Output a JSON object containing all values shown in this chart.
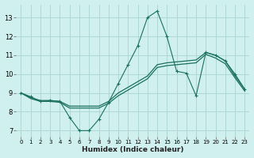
{
  "xlabel": "Humidex (Indice chaleur)",
  "ylabel": "",
  "bg_color": "#cff0ee",
  "grid_color": "#afd8d4",
  "line_color": "#1a7060",
  "xlim": [
    -0.5,
    23.5
  ],
  "ylim": [
    6.7,
    13.7
  ],
  "yticks": [
    7,
    8,
    9,
    10,
    11,
    12,
    13
  ],
  "xticks": [
    0,
    1,
    2,
    3,
    4,
    5,
    6,
    7,
    8,
    9,
    10,
    11,
    12,
    13,
    14,
    15,
    16,
    17,
    18,
    19,
    20,
    21,
    22,
    23
  ],
  "line1_x": [
    0,
    1,
    2,
    3,
    4,
    5,
    6,
    7,
    8,
    9,
    10,
    11,
    12,
    13,
    14,
    15,
    16,
    17,
    18,
    19,
    20,
    21,
    22,
    23
  ],
  "line1_y": [
    9.0,
    8.8,
    8.55,
    8.6,
    8.55,
    7.7,
    7.0,
    7.0,
    7.6,
    8.5,
    9.5,
    10.5,
    11.5,
    13.0,
    13.35,
    12.0,
    10.15,
    10.05,
    8.85,
    11.15,
    11.0,
    10.7,
    10.0,
    9.2
  ],
  "line2_x": [
    0,
    1,
    2,
    3,
    4,
    5,
    6,
    7,
    8,
    9,
    10,
    11,
    12,
    13,
    14,
    15,
    16,
    17,
    18,
    19,
    20,
    21,
    22,
    23
  ],
  "line2_y": [
    9.0,
    8.75,
    8.6,
    8.6,
    8.55,
    8.3,
    8.3,
    8.3,
    8.3,
    8.55,
    9.0,
    9.3,
    9.6,
    9.9,
    10.5,
    10.6,
    10.65,
    10.7,
    10.75,
    11.15,
    11.0,
    10.7,
    9.9,
    9.2
  ],
  "line3_x": [
    0,
    1,
    2,
    3,
    4,
    5,
    6,
    7,
    8,
    9,
    10,
    11,
    12,
    13,
    14,
    15,
    16,
    17,
    18,
    19,
    20,
    21,
    22,
    23
  ],
  "line3_y": [
    9.0,
    8.7,
    8.55,
    8.55,
    8.5,
    8.2,
    8.2,
    8.2,
    8.2,
    8.45,
    8.85,
    9.15,
    9.45,
    9.75,
    10.35,
    10.45,
    10.5,
    10.55,
    10.6,
    11.05,
    10.85,
    10.55,
    9.8,
    9.1
  ]
}
